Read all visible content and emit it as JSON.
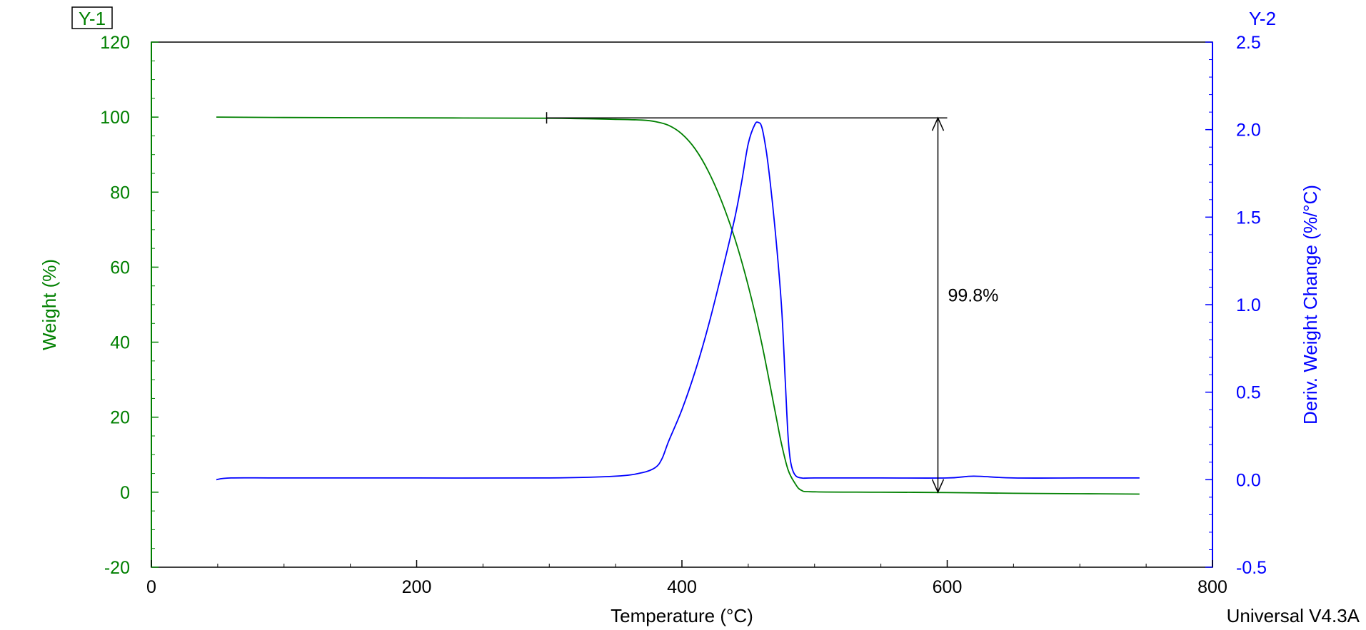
{
  "chart_data": {
    "type": "line",
    "title": "",
    "footer": "Universal V4.3A",
    "xlabel": "Temperature (°C)",
    "xlim": [
      0,
      800
    ],
    "x_ticks": [
      "0",
      "200",
      "400",
      "600",
      "800"
    ],
    "y1": {
      "tag": "Y-1",
      "label": "Weight (%)",
      "lim": [
        -20,
        120
      ],
      "ticks": [
        "-20",
        "0",
        "20",
        "40",
        "60",
        "80",
        "100",
        "120"
      ],
      "color": "#008000"
    },
    "y2": {
      "tag": "Y-2",
      "label": "Deriv. Weight Change (%/°C)",
      "lim": [
        -0.5,
        2.5
      ],
      "ticks": [
        "-0.5",
        "0.0",
        "0.5",
        "1.0",
        "1.5",
        "2.0",
        "2.5"
      ],
      "color": "#0000ff"
    },
    "series": [
      {
        "axis": "y1",
        "color": "#008000",
        "x": [
          49,
          100,
          200,
          300,
          350,
          370,
          380,
          390,
          400,
          410,
          420,
          430,
          440,
          450,
          460,
          470,
          475,
          480,
          485,
          490,
          500,
          550,
          600,
          650,
          700,
          745
        ],
        "y": [
          100,
          99.9,
          99.8,
          99.7,
          99.4,
          99.2,
          98.8,
          97.8,
          95.5,
          91.5,
          85.5,
          77.5,
          67.5,
          55,
          40,
          22,
          13,
          6,
          2.5,
          0.5,
          0.1,
          0,
          -0.1,
          -0.3,
          -0.4,
          -0.5
        ]
      },
      {
        "axis": "y2",
        "color": "#0000ff",
        "x": [
          49,
          60,
          100,
          200,
          300,
          350,
          370,
          380,
          385,
          390,
          400,
          410,
          420,
          430,
          440,
          445,
          450,
          455,
          458,
          460,
          462,
          465,
          470,
          475,
          478,
          480,
          482,
          485,
          490,
          500,
          550,
          600,
          620,
          650,
          700,
          745
        ],
        "y": [
          0.0,
          0.01,
          0.01,
          0.01,
          0.01,
          0.02,
          0.04,
          0.07,
          0.12,
          0.22,
          0.4,
          0.62,
          0.88,
          1.18,
          1.5,
          1.7,
          1.92,
          2.03,
          2.04,
          2.02,
          1.95,
          1.8,
          1.45,
          1.0,
          0.55,
          0.25,
          0.1,
          0.03,
          0.01,
          0.01,
          0.01,
          0.01,
          0.02,
          0.01,
          0.01,
          0.01
        ]
      }
    ],
    "annotation": {
      "label": "99.8%",
      "start_x": 298,
      "line_end_x": 600,
      "arrow_x": 593,
      "top_weight": 99.8,
      "bottom_weight": 0
    }
  }
}
